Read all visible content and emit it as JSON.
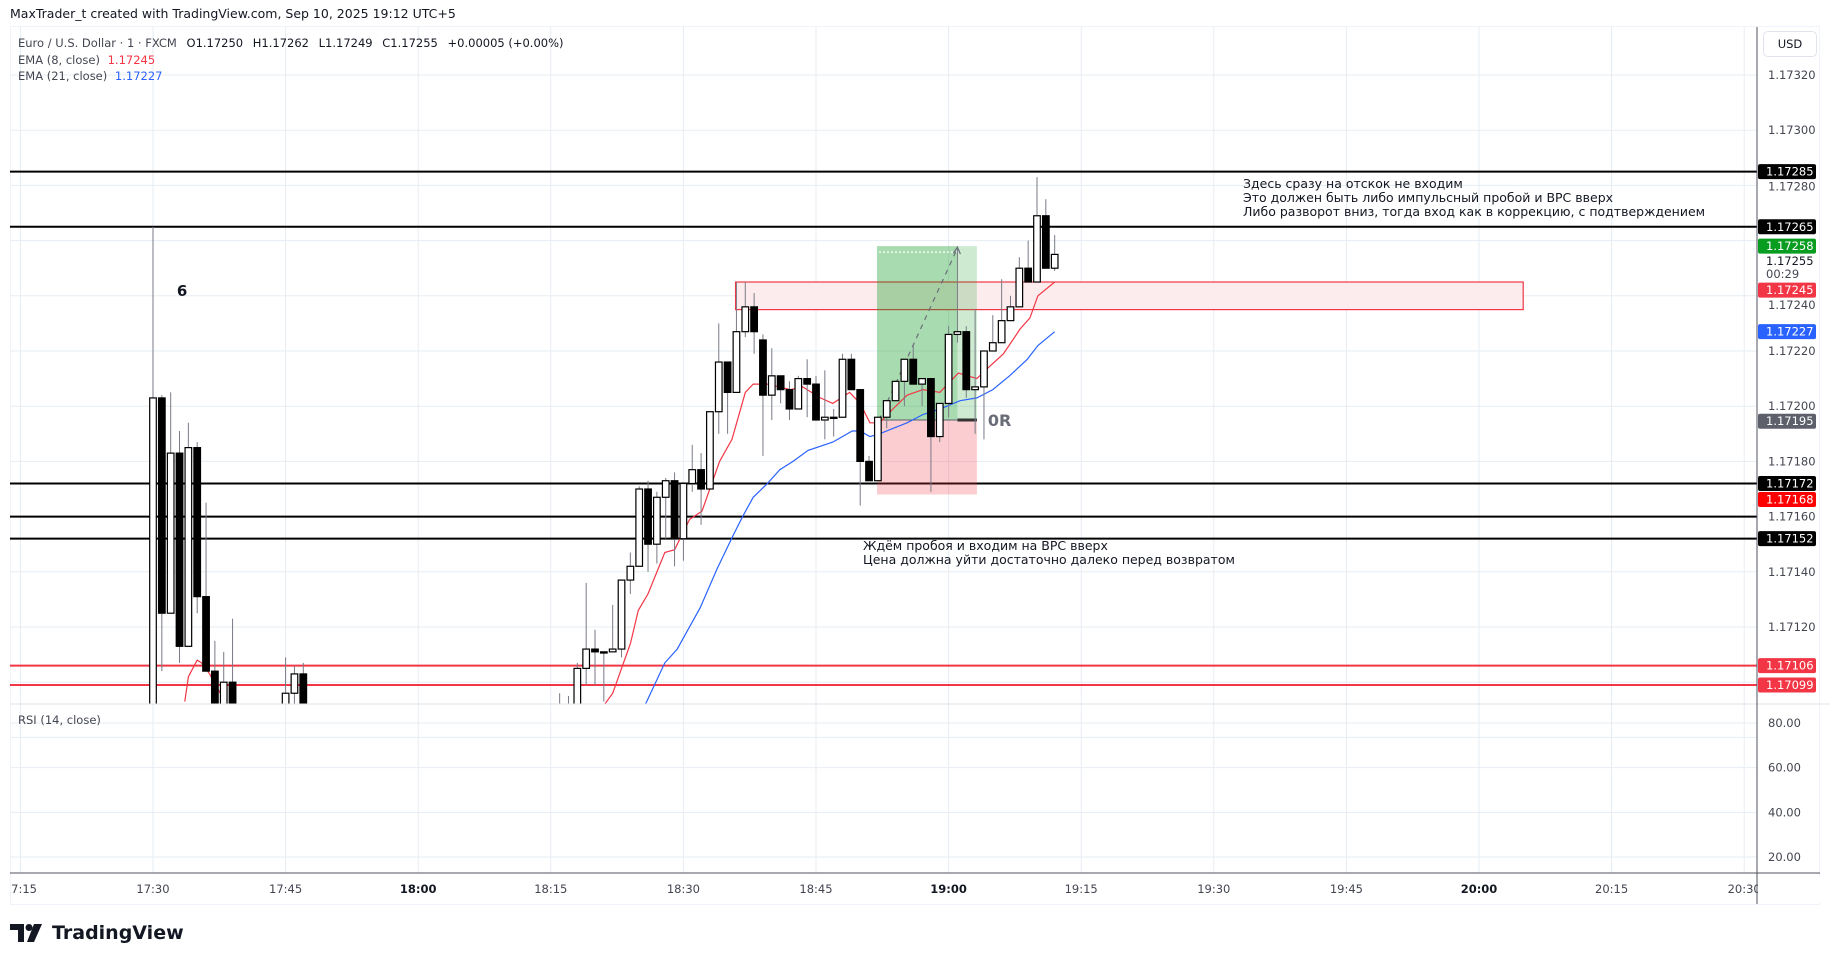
{
  "header": {
    "credit": "MaxTrader_t created with TradingView.com, Sep 10, 2025 19:12 UTC+5"
  },
  "legend": {
    "symbol": "Euro / U.S. Dollar · 1 · FXCM",
    "open": "O1.17250",
    "high": "H1.17262",
    "low": "L1.17249",
    "close": "C1.17255",
    "change": "+0.00005 (+0.00%)",
    "ema8_label": "EMA (8, close)",
    "ema8_value": "1.17245",
    "ema21_label": "EMA (21, close)",
    "ema21_value": "1.17227"
  },
  "rsi": {
    "label": "RSI (14, close)",
    "ticks": [
      "80.00",
      "60.00",
      "40.00",
      "20.00"
    ],
    "tick_values": [
      80,
      60,
      40,
      20
    ]
  },
  "price_scale": {
    "currency": "USD",
    "current_price": "1.17255",
    "countdown": "00:29",
    "ticks": [
      1.1732,
      1.173,
      1.1728,
      1.1724,
      1.1722,
      1.172,
      1.1718,
      1.1716,
      1.1714,
      1.1712
    ],
    "badges": [
      {
        "price": 1.17285,
        "text": "1.17285",
        "color": "#000000"
      },
      {
        "price": 1.17265,
        "text": "1.17265",
        "color": "#000000"
      },
      {
        "price": 1.17258,
        "text": "1.17258",
        "color": "#089c20"
      },
      {
        "price": 1.17245,
        "text": "1.17245",
        "color": "#f23645"
      },
      {
        "price": 1.17227,
        "text": "1.17227",
        "color": "#2962ff"
      },
      {
        "price": 1.17195,
        "text": "1.17195",
        "color": "#5d606b"
      },
      {
        "price": 1.17172,
        "text": "1.17172",
        "color": "#000000"
      },
      {
        "price": 1.17168,
        "text": "1.17168",
        "color": "#ff0000"
      },
      {
        "price": 1.17152,
        "text": "1.17152",
        "color": "#000000"
      },
      {
        "price": 1.17106,
        "text": "1.17106",
        "color": "#f23645"
      },
      {
        "price": 1.17099,
        "text": "1.17099",
        "color": "#f23645"
      }
    ]
  },
  "time_axis": {
    "labels": [
      {
        "t": -15,
        "text": "17:15",
        "bold": false
      },
      {
        "t": 0,
        "text": "17:30",
        "bold": false
      },
      {
        "t": 15,
        "text": "17:45",
        "bold": false
      },
      {
        "t": 30,
        "text": "18:00",
        "bold": true
      },
      {
        "t": 45,
        "text": "18:15",
        "bold": false
      },
      {
        "t": 60,
        "text": "18:30",
        "bold": false
      },
      {
        "t": 75,
        "text": "18:45",
        "bold": false
      },
      {
        "t": 90,
        "text": "19:00",
        "bold": true
      },
      {
        "t": 105,
        "text": "19:15",
        "bold": false
      },
      {
        "t": 120,
        "text": "19:30",
        "bold": false
      },
      {
        "t": 135,
        "text": "19:45",
        "bold": false
      },
      {
        "t": 150,
        "text": "20:00",
        "bold": true
      },
      {
        "t": 165,
        "text": "20:15",
        "bold": false
      },
      {
        "t": 180,
        "text": "20:30",
        "bold": false
      }
    ]
  },
  "drawings": {
    "horizontal_lines": [
      {
        "price": 1.17285,
        "color": "#000000"
      },
      {
        "price": 1.17265,
        "color": "#000000"
      },
      {
        "price": 1.17172,
        "color": "#000000"
      },
      {
        "price": 1.1716,
        "color": "#000000"
      },
      {
        "price": 1.17152,
        "color": "#000000"
      },
      {
        "price": 1.17106,
        "color": "#f23645"
      },
      {
        "price": 1.17099,
        "color": "#f23645"
      }
    ],
    "zone": {
      "t_start": 65.9,
      "t_end": 155,
      "price_top": 1.17245,
      "price_bottom": 1.17235,
      "border": "#f23645",
      "fill": "#fdeced"
    },
    "long_position": {
      "t_start": 81.9,
      "t_mid": 91,
      "t_end": 93.2,
      "entry": 1.17195,
      "target": 1.17258,
      "stop": 1.17168,
      "label": "0R"
    },
    "count_label": {
      "text": "6",
      "t": 2.7,
      "price": 1.1724
    },
    "note_top": [
      "Здесь сразу на отскок не входим",
      "Это должен быть либо импульсный пробой и ВРС вверх",
      "Либо разворот вниз, тогда вход как в коррекцию, с подтверждением"
    ],
    "note_bottom": [
      "Ждём пробоя и входим на ВРС вверх",
      "Цена должна уйти достаточно далеко перед возвратом"
    ]
  },
  "colors": {
    "bull_body": "#ffffff",
    "bear_body": "#000000",
    "wick": "#787b86",
    "ema8": "#f23645",
    "ema21": "#2962ff",
    "grid": "#e6edf3",
    "axis": "#50535e"
  },
  "logo": {
    "text": "TradingView"
  },
  "chart_data": {
    "type": "candlestick",
    "x_unit": "minutes after 17:30",
    "ylim": [
      1.17092,
      1.17335
    ],
    "candles": [
      [
        0,
        1.1708,
        1.17265,
        1.1707,
        1.17203
      ],
      [
        1,
        1.17203,
        1.17204,
        1.17104,
        1.17125
      ],
      [
        2,
        1.17125,
        1.17205,
        1.17125,
        1.17183
      ],
      [
        3,
        1.17183,
        1.17191,
        1.17107,
        1.17113
      ],
      [
        4,
        1.17113,
        1.17194,
        1.17113,
        1.17185
      ],
      [
        5,
        1.17185,
        1.17187,
        1.17125,
        1.17131
      ],
      [
        6,
        1.17131,
        1.17165,
        1.17104,
        1.17104
      ],
      [
        7,
        1.17104,
        1.17115,
        1.1708,
        1.17085
      ],
      [
        8,
        1.1708,
        1.17111,
        1.17075,
        1.171
      ],
      [
        9,
        1.171,
        1.17123,
        1.1708,
        1.17085
      ],
      [
        15,
        1.17085,
        1.17109,
        1.1708,
        1.17096
      ],
      [
        16,
        1.17096,
        1.17106,
        1.1709,
        1.17103
      ],
      [
        17,
        1.17103,
        1.17107,
        1.1708,
        1.17088
      ],
      [
        46,
        1.17085,
        1.17096,
        1.17075,
        1.1708
      ],
      [
        47,
        1.17082,
        1.17095,
        1.17075,
        1.17088
      ],
      [
        48,
        1.17085,
        1.17107,
        1.1708,
        1.17105
      ],
      [
        49,
        1.17105,
        1.17136,
        1.17099,
        1.17112
      ],
      [
        50,
        1.17112,
        1.17119,
        1.17099,
        1.17111
      ],
      [
        51,
        1.17111,
        1.17111,
        1.17093,
        1.17111
      ],
      [
        52,
        1.17111,
        1.17128,
        1.17111,
        1.17112
      ],
      [
        53,
        1.17112,
        1.17137,
        1.17109,
        1.17137
      ],
      [
        54,
        1.17137,
        1.17147,
        1.17132,
        1.17142
      ],
      [
        55,
        1.17142,
        1.17171,
        1.17142,
        1.1717
      ],
      [
        56,
        1.1717,
        1.17173,
        1.1714,
        1.1715
      ],
      [
        57,
        1.1715,
        1.17169,
        1.17143,
        1.17167
      ],
      [
        58,
        1.17167,
        1.17174,
        1.17152,
        1.17173
      ],
      [
        59,
        1.17173,
        1.17176,
        1.17142,
        1.17152
      ],
      [
        60,
        1.17152,
        1.17172,
        1.17144,
        1.17172
      ],
      [
        61,
        1.17172,
        1.17186,
        1.17169,
        1.17177
      ],
      [
        62,
        1.17177,
        1.17183,
        1.17157,
        1.1717
      ],
      [
        63,
        1.1717,
        1.17198,
        1.1717,
        1.17198
      ],
      [
        64,
        1.17198,
        1.1723,
        1.1719,
        1.17216
      ],
      [
        65,
        1.17216,
        1.17216,
        1.1719,
        1.17205
      ],
      [
        66,
        1.17205,
        1.17245,
        1.17205,
        1.17227
      ],
      [
        67,
        1.17227,
        1.17245,
        1.17225,
        1.17236
      ],
      [
        68,
        1.17236,
        1.17241,
        1.17219,
        1.17227
      ],
      [
        69,
        1.17224,
        1.17226,
        1.17182,
        1.17204
      ],
      [
        70,
        1.17204,
        1.17221,
        1.17195,
        1.17211
      ],
      [
        71,
        1.17211,
        1.17211,
        1.17201,
        1.17206
      ],
      [
        72,
        1.17206,
        1.17209,
        1.17195,
        1.17199
      ],
      [
        73,
        1.17199,
        1.17211,
        1.17199,
        1.1721
      ],
      [
        74,
        1.1721,
        1.17217,
        1.17196,
        1.17208
      ],
      [
        75,
        1.17208,
        1.17211,
        1.17195,
        1.17195
      ],
      [
        76,
        1.17195,
        1.17213,
        1.17188,
        1.17196
      ],
      [
        77,
        1.17196,
        1.17199,
        1.17189,
        1.17196
      ],
      [
        78,
        1.17196,
        1.17219,
        1.17196,
        1.17217
      ],
      [
        79,
        1.17217,
        1.17219,
        1.17206,
        1.17206
      ],
      [
        80,
        1.17206,
        1.17206,
        1.17164,
        1.1718
      ],
      [
        81,
        1.1718,
        1.17182,
        1.17173,
        1.17173
      ],
      [
        82,
        1.17173,
        1.17196,
        1.17173,
        1.17196
      ],
      [
        83,
        1.17196,
        1.17202,
        1.17192,
        1.17202
      ],
      [
        84,
        1.17202,
        1.17209,
        1.17202,
        1.17209
      ],
      [
        85,
        1.17209,
        1.17217,
        1.172,
        1.17217
      ],
      [
        86,
        1.17217,
        1.17222,
        1.17208,
        1.17208
      ],
      [
        87,
        1.17208,
        1.1721,
        1.172,
        1.1721
      ],
      [
        88,
        1.1721,
        1.1721,
        1.17169,
        1.17189
      ],
      [
        89,
        1.17189,
        1.17201,
        1.17187,
        1.17201
      ],
      [
        90,
        1.17201,
        1.17229,
        1.17196,
        1.17226
      ],
      [
        91,
        1.17226,
        1.17258,
        1.17223,
        1.17227
      ],
      [
        92,
        1.17227,
        1.17229,
        1.17203,
        1.17206
      ],
      [
        93,
        1.17206,
        1.17235,
        1.1719,
        1.17207
      ],
      [
        94,
        1.17207,
        1.1722,
        1.17188,
        1.1722
      ],
      [
        95,
        1.1722,
        1.17233,
        1.1722,
        1.17223
      ],
      [
        96,
        1.17223,
        1.17246,
        1.17223,
        1.17231
      ],
      [
        97,
        1.17231,
        1.1724,
        1.17231,
        1.17236
      ],
      [
        98,
        1.17236,
        1.17254,
        1.17236,
        1.1725
      ],
      [
        99,
        1.1725,
        1.1726,
        1.17245,
        1.17245
      ],
      [
        100,
        1.17245,
        1.17283,
        1.17245,
        1.17269
      ],
      [
        101,
        1.17269,
        1.17275,
        1.1725,
        1.1725
      ],
      [
        102,
        1.1725,
        1.17262,
        1.17249,
        1.17255
      ]
    ],
    "ema8_segments": [
      [
        [
          3.6,
          1.17093
        ],
        [
          4.0,
          1.17102
        ],
        [
          5.0,
          1.17108
        ],
        [
          5.5,
          1.17107
        ],
        [
          6.4,
          1.17103
        ],
        [
          7.6,
          1.17096
        ]
      ],
      [
        [
          51.1,
          1.17092
        ],
        [
          52.0,
          1.17096
        ],
        [
          54.0,
          1.17114
        ],
        [
          54.9,
          1.17126
        ],
        [
          56.0,
          1.17132
        ],
        [
          57.9,
          1.17147
        ],
        [
          59.0,
          1.17148
        ],
        [
          60.7,
          1.17159
        ],
        [
          62.1,
          1.17162
        ],
        [
          64.1,
          1.1718
        ],
        [
          65.5,
          1.17188
        ],
        [
          67.0,
          1.17205
        ],
        [
          67.9,
          1.17208
        ],
        [
          69.5,
          1.17208
        ],
        [
          72.1,
          1.17206
        ],
        [
          73.5,
          1.17207
        ],
        [
          75.5,
          1.17203
        ],
        [
          76.9,
          1.17201
        ],
        [
          78.8,
          1.17205
        ],
        [
          80.0,
          1.17201
        ],
        [
          81.1,
          1.17194
        ],
        [
          82.2,
          1.17194
        ],
        [
          83.7,
          1.17199
        ],
        [
          85.3,
          1.17204
        ],
        [
          87.1,
          1.17206
        ],
        [
          89.0,
          1.17205
        ],
        [
          91.1,
          1.17212
        ],
        [
          93.2,
          1.1721
        ],
        [
          94.5,
          1.17214
        ],
        [
          96.2,
          1.17219
        ],
        [
          98.1,
          1.17228
        ],
        [
          99.2,
          1.17232
        ],
        [
          100.1,
          1.1724
        ],
        [
          102.0,
          1.17245
        ]
      ]
    ],
    "ema21": [
      [
        55.7,
        1.17092
      ],
      [
        57.9,
        1.17107
      ],
      [
        59.3,
        1.17112
      ],
      [
        61.9,
        1.17127
      ],
      [
        63.8,
        1.17141
      ],
      [
        65.6,
        1.17153
      ],
      [
        66.7,
        1.1716
      ],
      [
        67.9,
        1.17167
      ],
      [
        69.5,
        1.17172
      ],
      [
        70.9,
        1.17177
      ],
      [
        72.4,
        1.1718
      ],
      [
        74.1,
        1.17184
      ],
      [
        76.9,
        1.17187
      ],
      [
        79.1,
        1.17191
      ],
      [
        80.0,
        1.17191
      ],
      [
        81.1,
        1.17189
      ],
      [
        82.2,
        1.1719
      ],
      [
        85.3,
        1.17194
      ],
      [
        87.1,
        1.17197
      ],
      [
        89.0,
        1.17199
      ],
      [
        91.3,
        1.17202
      ],
      [
        93.2,
        1.17203
      ],
      [
        95.0,
        1.17206
      ],
      [
        96.9,
        1.17211
      ],
      [
        98.9,
        1.17217
      ],
      [
        100.1,
        1.17222
      ],
      [
        102.0,
        1.17227
      ]
    ]
  }
}
